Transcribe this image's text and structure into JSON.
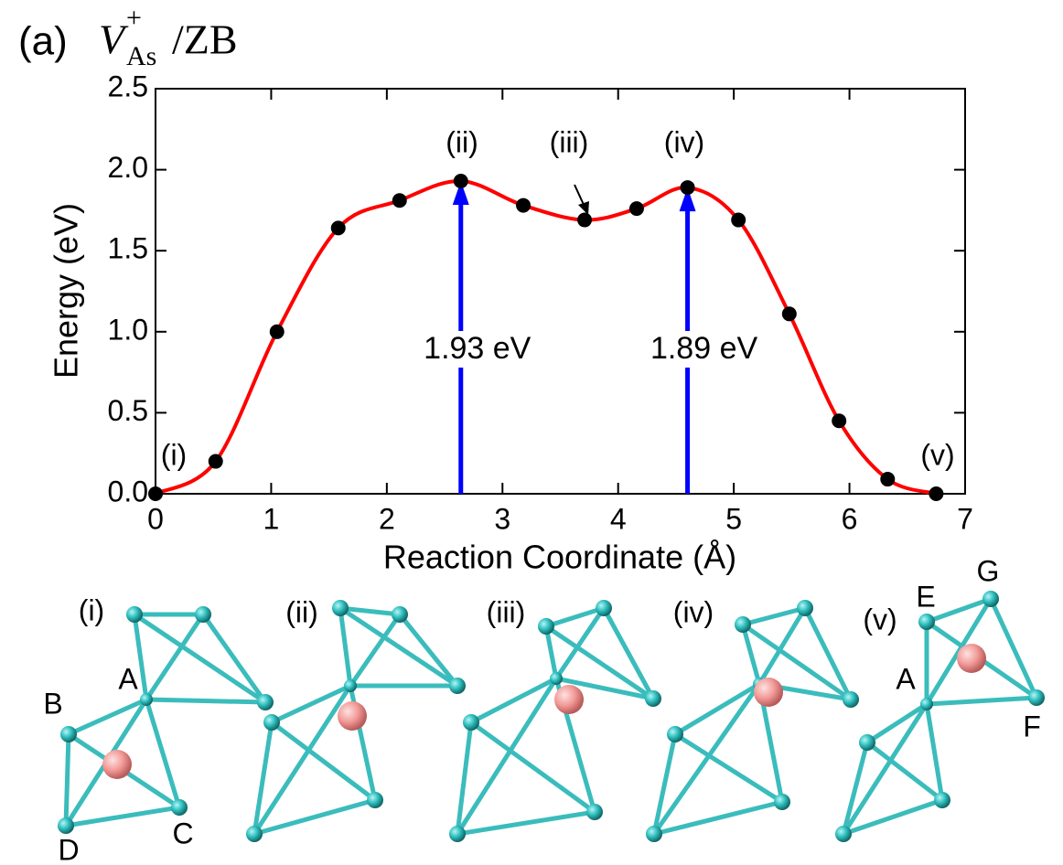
{
  "chart_data": {
    "type": "line",
    "panel": "(a)",
    "title": {
      "main": "V",
      "sub": "As",
      "sup": "+",
      "rest": "/ZB"
    },
    "x_label": "Reaction Coordinate (Å)",
    "y_label": "Energy (eV)",
    "xlim": [
      0,
      7
    ],
    "ylim": [
      0,
      2.5
    ],
    "xticks": [
      0,
      1,
      2,
      3,
      4,
      5,
      6,
      7
    ],
    "yticks": [
      {
        "value": 0,
        "label": "0.0"
      },
      0.5,
      {
        "value": 1,
        "label": "1.0"
      },
      1.5,
      {
        "value": 2,
        "label": "2.0"
      },
      2.5
    ],
    "series": [
      {
        "color": "#ff0000",
        "marker_color": "#000000",
        "x": [
          0,
          0.52,
          1.05,
          1.58,
          2.11,
          2.64,
          3.18,
          3.71,
          4.16,
          4.6,
          5.04,
          5.48,
          5.91,
          6.33,
          6.75
        ],
        "values": [
          0,
          0.2,
          1.0,
          1.64,
          1.81,
          1.93,
          1.78,
          1.69,
          1.76,
          1.89,
          1.69,
          1.11,
          0.45,
          0.09,
          0
        ],
        "point_labels": [
          "(i)",
          null,
          null,
          null,
          null,
          "(ii)",
          null,
          "(iii)",
          null,
          "(iv)",
          null,
          null,
          null,
          null,
          "(v)"
        ]
      }
    ],
    "barriers": [
      {
        "x": 2.64,
        "value": 1.93,
        "label": "1.93 eV"
      },
      {
        "x": 4.6,
        "value": 1.89,
        "label": "1.89 eV"
      }
    ],
    "barrier_color": "#0000ff"
  },
  "structures": [
    {
      "label": "(i)",
      "atoms": [
        "A",
        "B",
        "C",
        "D"
      ]
    },
    {
      "label": "(ii)",
      "atoms": []
    },
    {
      "label": "(iii)",
      "atoms": []
    },
    {
      "label": "(iv)",
      "atoms": []
    },
    {
      "label": "(v)",
      "atoms": [
        "E",
        "G",
        "A",
        "F"
      ]
    }
  ]
}
